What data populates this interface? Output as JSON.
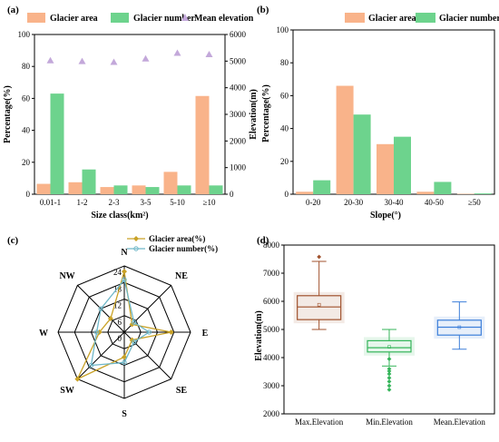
{
  "colors": {
    "area": "#F9B38A",
    "number": "#6DD38D",
    "elev": "#C3A8DA",
    "radar_area": "#C9A227",
    "radar_number": "#6FB7C8",
    "box_max": "#A0522D",
    "box_min": "#35B55A",
    "box_mean": "#3D7FD9"
  },
  "chart_data": [
    {
      "panel": "(a)",
      "type": "bar",
      "categories": [
        "0.01-1",
        "1-2",
        "2-3",
        "3-5",
        "5-10",
        "≥10"
      ],
      "series": [
        {
          "name": "Glacier area",
          "axis": "left",
          "values": [
            6.5,
            7.5,
            4.5,
            5.5,
            14,
            61.5
          ]
        },
        {
          "name": "Glacier number",
          "axis": "left",
          "values": [
            63,
            15.5,
            5.5,
            4.5,
            5.5,
            5.5
          ]
        },
        {
          "name": "Mean elevation",
          "axis": "right",
          "type": "scatter",
          "values": [
            5020,
            4990,
            4960,
            5090,
            5300,
            5250
          ]
        }
      ],
      "xlabel": "Size class(km²)",
      "ylabel": "Percentage(%)",
      "y2label": "Elevation(m)",
      "ylim": [
        0,
        100
      ],
      "y2lim": [
        0,
        6000
      ],
      "yticks": [
        0,
        20,
        40,
        60,
        80,
        100
      ],
      "y2ticks": [
        0,
        1000,
        2000,
        3000,
        4000,
        5000,
        6000
      ],
      "legend": "top"
    },
    {
      "panel": "(b)",
      "type": "bar",
      "categories": [
        "0-20",
        "20-30",
        "30-40",
        "40-50",
        "≥50"
      ],
      "series": [
        {
          "name": "Glacier area",
          "values": [
            1.5,
            66,
            30.5,
            1.5,
            0.3
          ]
        },
        {
          "name": "Glacier number",
          "values": [
            8.5,
            48.5,
            35,
            7.5,
            0.5
          ]
        }
      ],
      "xlabel": "Slope(°)",
      "ylabel": "Percentage(%)",
      "ylim": [
        0,
        100
      ],
      "yticks": [
        0,
        20,
        40,
        60,
        80,
        100
      ],
      "legend": "top-right"
    },
    {
      "panel": "(c)",
      "type": "radar",
      "directions": [
        "N",
        "NE",
        "E",
        "SE",
        "S",
        "SW",
        "W",
        "NW"
      ],
      "rlim": [
        0,
        24
      ],
      "rticks": [
        0,
        6,
        12,
        18,
        24
      ],
      "series": [
        {
          "name": "Glacier area(%)",
          "values": [
            22,
            4,
            17,
            4,
            9,
            24,
            9,
            7
          ]
        },
        {
          "name": "Glacier number(%)",
          "values": [
            19,
            5,
            9,
            5,
            11,
            17,
            10,
            12
          ]
        }
      ],
      "legend": "top-right"
    },
    {
      "panel": "(d)",
      "type": "box",
      "categories": [
        "Max.Elevation",
        "Min.Elevation",
        "Mean.Elevation"
      ],
      "boxes": [
        {
          "whisker_low": 5000,
          "q1": 5350,
          "median": 5800,
          "mean": 5880,
          "q3": 6200,
          "whisker_high": 7420,
          "outliers": [
            7580
          ]
        },
        {
          "whisker_low": 3700,
          "q1": 4200,
          "median": 4350,
          "mean": 4380,
          "q3": 4600,
          "whisker_high": 5000,
          "outliers": [
            3950,
            3600,
            3520,
            3420,
            3280,
            3150,
            3000,
            2860
          ]
        },
        {
          "whisker_low": 4300,
          "q1": 4800,
          "median": 5080,
          "mean": 5080,
          "q3": 5330,
          "whisker_high": 5980,
          "outliers": []
        }
      ],
      "ylabel": "Elevation(m)",
      "ylim": [
        2000,
        8000
      ],
      "yticks": [
        2000,
        3000,
        4000,
        5000,
        6000,
        7000,
        8000
      ]
    }
  ]
}
